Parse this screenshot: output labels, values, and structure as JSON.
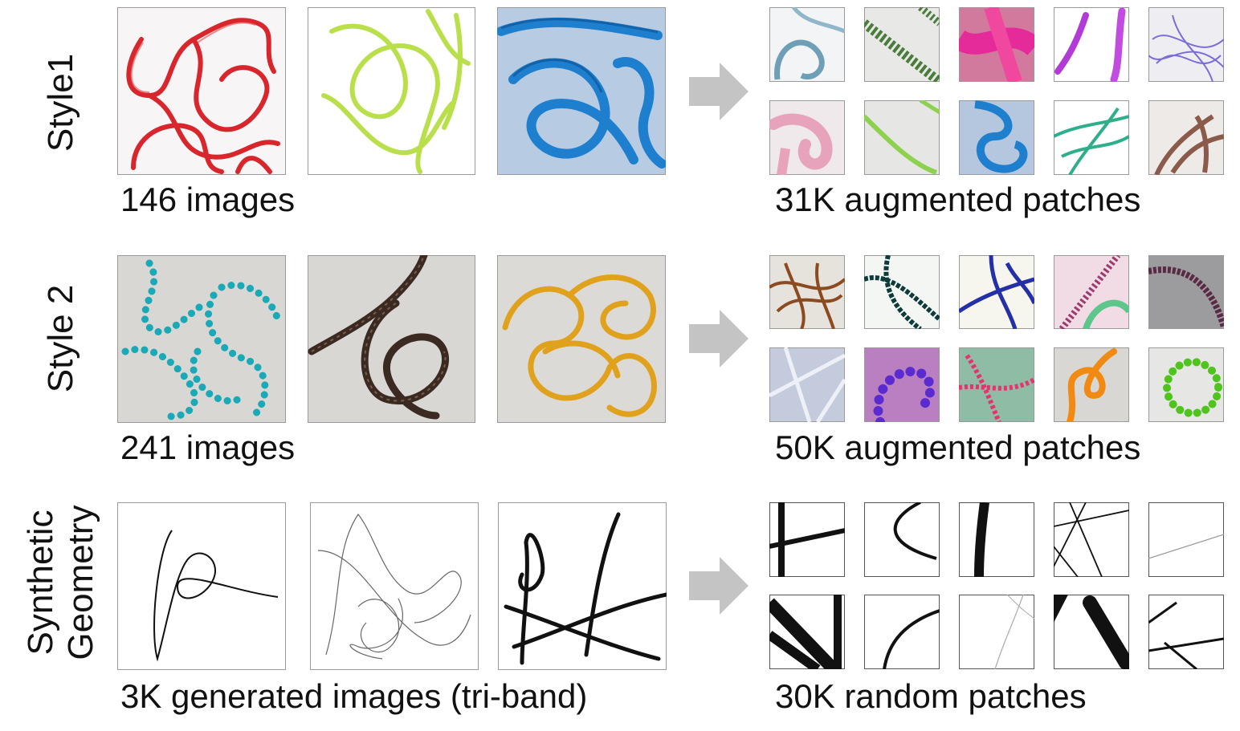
{
  "rows": [
    {
      "label": "Style1",
      "source_caption": "146 images",
      "patch_caption": "31K augmented patches"
    },
    {
      "label": "Style 2",
      "source_caption": "241 images",
      "patch_caption": "50K augmented patches"
    },
    {
      "label_line1": "Synthetic",
      "label_line2": "Geometry",
      "source_caption": "3K generated images (tri-band)",
      "patch_caption": "30K random patches"
    }
  ],
  "colors": {
    "tile_border": "#9a9a9a",
    "arrow": "#c4c4c4",
    "style1_red": "#d8262c",
    "style1_lime": "#b9e04a",
    "style1_blue_bg": "#b7cbe3",
    "style1_blue": "#1e7fcf",
    "style2_bg": "#d9d7d3",
    "style2_cyan": "#1aa9b6",
    "style2_brown": "#3b2a22",
    "style2_gold": "#e0a21c"
  }
}
